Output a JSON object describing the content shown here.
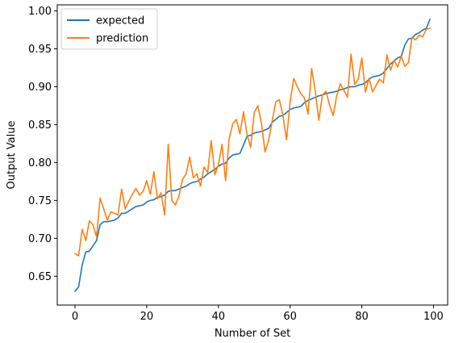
{
  "chart_data": {
    "type": "line",
    "title": "",
    "xlabel": "Number of Set",
    "ylabel": "Output Value",
    "xlim": [
      -4.95,
      103.95
    ],
    "ylim": [
      0.612,
      1.008
    ],
    "xticks": [
      0,
      20,
      40,
      60,
      80,
      100
    ],
    "yticks": [
      0.65,
      0.7,
      0.75,
      0.8,
      0.85,
      0.9,
      0.95,
      1.0
    ],
    "ytick_labels": [
      "0.65",
      "0.70",
      "0.75",
      "0.80",
      "0.85",
      "0.90",
      "0.95",
      "1.00"
    ],
    "grid": false,
    "legend": "top-left",
    "x": [
      0,
      1,
      2,
      3,
      4,
      5,
      6,
      7,
      8,
      9,
      10,
      11,
      12,
      13,
      14,
      15,
      16,
      17,
      18,
      19,
      20,
      21,
      22,
      23,
      24,
      25,
      26,
      27,
      28,
      29,
      30,
      31,
      32,
      33,
      34,
      35,
      36,
      37,
      38,
      39,
      40,
      41,
      42,
      43,
      44,
      45,
      46,
      47,
      48,
      49,
      50,
      51,
      52,
      53,
      54,
      55,
      56,
      57,
      58,
      59,
      60,
      61,
      62,
      63,
      64,
      65,
      66,
      67,
      68,
      69,
      70,
      71,
      72,
      73,
      74,
      75,
      76,
      77,
      78,
      79,
      80,
      81,
      82,
      83,
      84,
      85,
      86,
      87,
      88,
      89,
      90,
      91,
      92,
      93,
      94,
      95,
      96,
      97,
      98,
      99
    ],
    "series": [
      {
        "name": "expected",
        "color": "#1f77b4",
        "values": [
          0.63,
          0.636,
          0.665,
          0.682,
          0.683,
          0.69,
          0.697,
          0.718,
          0.722,
          0.722,
          0.723,
          0.724,
          0.727,
          0.733,
          0.733,
          0.736,
          0.739,
          0.742,
          0.743,
          0.744,
          0.748,
          0.75,
          0.751,
          0.754,
          0.755,
          0.757,
          0.762,
          0.763,
          0.763,
          0.765,
          0.767,
          0.769,
          0.772,
          0.774,
          0.775,
          0.778,
          0.781,
          0.785,
          0.788,
          0.791,
          0.795,
          0.798,
          0.799,
          0.806,
          0.81,
          0.811,
          0.812,
          0.823,
          0.835,
          0.836,
          0.839,
          0.84,
          0.841,
          0.843,
          0.845,
          0.853,
          0.857,
          0.861,
          0.862,
          0.866,
          0.87,
          0.872,
          0.873,
          0.874,
          0.879,
          0.882,
          0.884,
          0.886,
          0.888,
          0.889,
          0.891,
          0.892,
          0.893,
          0.894,
          0.896,
          0.897,
          0.899,
          0.9,
          0.9,
          0.902,
          0.903,
          0.905,
          0.91,
          0.913,
          0.914,
          0.915,
          0.918,
          0.924,
          0.93,
          0.934,
          0.938,
          0.94,
          0.955,
          0.963,
          0.964,
          0.969,
          0.971,
          0.975,
          0.977,
          0.989
        ]
      },
      {
        "name": "prediction",
        "color": "#ff7f0e",
        "values": [
          0.68,
          0.677,
          0.712,
          0.697,
          0.723,
          0.718,
          0.702,
          0.753,
          0.739,
          0.724,
          0.735,
          0.733,
          0.731,
          0.765,
          0.739,
          0.749,
          0.758,
          0.766,
          0.757,
          0.762,
          0.776,
          0.758,
          0.788,
          0.752,
          0.76,
          0.731,
          0.824,
          0.75,
          0.744,
          0.756,
          0.778,
          0.785,
          0.807,
          0.78,
          0.785,
          0.769,
          0.794,
          0.787,
          0.829,
          0.784,
          0.797,
          0.824,
          0.776,
          0.832,
          0.851,
          0.857,
          0.838,
          0.867,
          0.837,
          0.82,
          0.866,
          0.875,
          0.852,
          0.814,
          0.829,
          0.855,
          0.88,
          0.883,
          0.862,
          0.83,
          0.88,
          0.911,
          0.9,
          0.891,
          0.885,
          0.864,
          0.924,
          0.895,
          0.856,
          0.889,
          0.894,
          0.876,
          0.862,
          0.888,
          0.904,
          0.895,
          0.886,
          0.943,
          0.903,
          0.91,
          0.938,
          0.893,
          0.911,
          0.893,
          0.902,
          0.91,
          0.905,
          0.942,
          0.922,
          0.935,
          0.926,
          0.94,
          0.927,
          0.932,
          0.965,
          0.962,
          0.968,
          0.966,
          0.976,
          0.977
        ]
      }
    ]
  }
}
